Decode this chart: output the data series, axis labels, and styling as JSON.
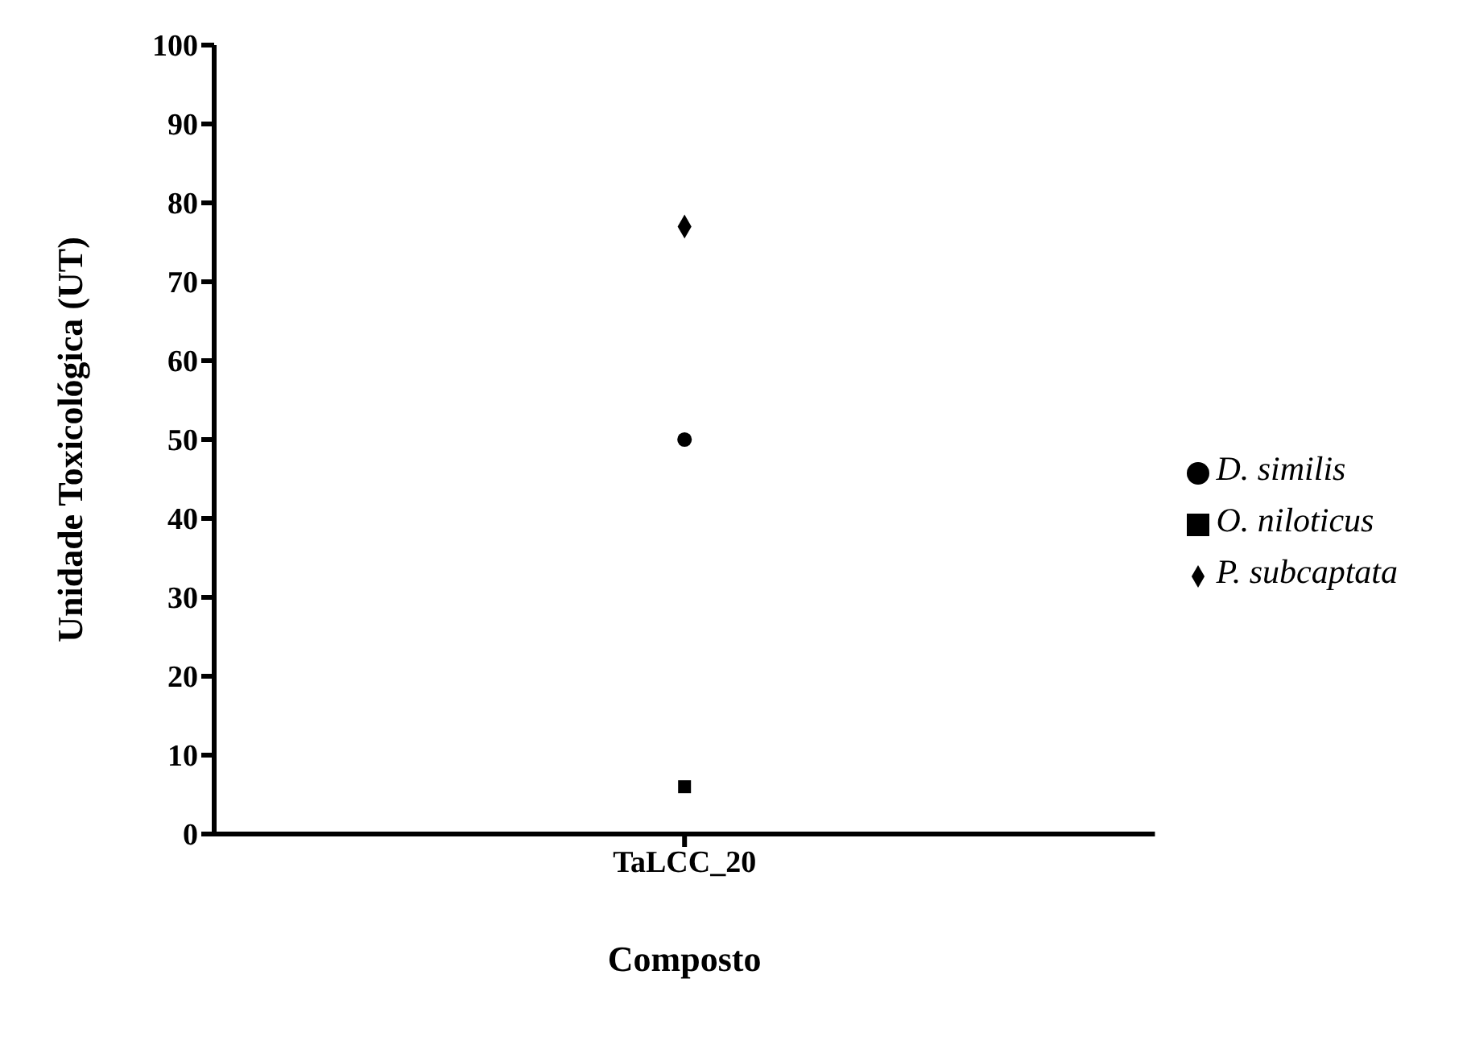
{
  "chart_data": {
    "type": "scatter",
    "xlabel": "Composto",
    "ylabel": "Unidade Toxicológica (UT)",
    "categories": [
      "TaLCC_20"
    ],
    "series": [
      {
        "name": "P. subcaptata",
        "color": "#000000",
        "marker": "diamond",
        "values": [
          77
        ]
      },
      {
        "name": "D. similis",
        "color": "#000000",
        "marker": "circle",
        "values": [
          50
        ]
      },
      {
        "name": "O. niloticus",
        "color": "#000000",
        "marker": "square",
        "values": [
          6
        ]
      }
    ],
    "ylim": [
      0,
      100
    ],
    "yticks": [
      0,
      10,
      20,
      30,
      40,
      50,
      60,
      70,
      80,
      90,
      100
    ],
    "grid": false,
    "legend": "right"
  }
}
